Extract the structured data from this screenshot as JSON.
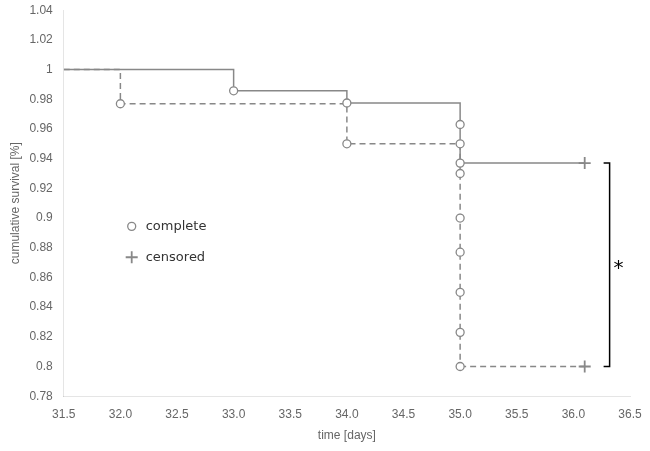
{
  "chart_data": {
    "type": "line",
    "xlabel": "time [days]",
    "ylabel": "cumulative survival [%]",
    "xlim": [
      31.5,
      36.5
    ],
    "ylim": [
      0.78,
      1.04
    ],
    "xticks": [
      31.5,
      {
        "value": 32.0,
        "label": "32.0"
      },
      32.5,
      {
        "value": 33.0,
        "label": "33.0"
      },
      33.5,
      {
        "value": 34.0,
        "label": "34.0"
      },
      34.5,
      {
        "value": 35.0,
        "label": "35.0"
      },
      35.5,
      {
        "value": 36.0,
        "label": "36.0"
      },
      36.5
    ],
    "yticks": [
      0.78,
      0.8,
      0.82,
      0.84,
      0.86,
      0.88,
      0.9,
      0.92,
      0.94,
      0.96,
      0.98,
      1,
      1.02,
      1.04
    ],
    "grid": false,
    "series": [
      {
        "type": "line",
        "line_style": "dashed",
        "color": "#888888",
        "x": [
          31.5,
          32.0,
          32.0,
          34.0,
          34.0,
          35.0
        ],
        "values": [
          1.0,
          1.0,
          0.977,
          0.977,
          0.95,
          0.95
        ]
      },
      {
        "type": "line",
        "line_style": "dashed",
        "color": "#888888",
        "x": [
          35.0,
          35.0
        ],
        "values": [
          0.95,
          0.8
        ]
      },
      {
        "type": "line",
        "line_style": "dashed",
        "color": "#888888",
        "x": [
          35.0,
          36.1
        ],
        "values": [
          0.8,
          0.8
        ]
      },
      {
        "type": "scatter",
        "marker": "circle",
        "color": "#888888",
        "x": [
          32.0,
          34.0,
          35.0,
          35.0,
          35.0,
          35.0,
          35.0,
          35.0,
          35.0
        ],
        "values": [
          0.977,
          0.95,
          0.95,
          0.93,
          0.9,
          0.877,
          0.85,
          0.823,
          0.8
        ]
      },
      {
        "type": "scatter",
        "marker": "plus",
        "color": "#888888",
        "x": [
          36.1
        ],
        "values": [
          0.8
        ]
      },
      {
        "type": "line",
        "line_style": "solid",
        "color": "#888888",
        "x": [
          31.5,
          33.0,
          33.0,
          34.0,
          34.0,
          35.0,
          35.0,
          36.1
        ],
        "values": [
          1.0,
          1.0,
          0.9857,
          0.9857,
          0.9775,
          0.9775,
          0.937,
          0.937
        ]
      },
      {
        "type": "scatter",
        "marker": "circle",
        "color": "#888888",
        "x": [
          33.0,
          34.0,
          35.0,
          35.0
        ],
        "values": [
          0.9857,
          0.9775,
          0.963,
          0.937
        ]
      },
      {
        "type": "scatter",
        "marker": "plus",
        "color": "#888888",
        "x": [
          36.1
        ],
        "values": [
          0.937
        ]
      }
    ],
    "annotations": [
      {
        "text": "complete",
        "marker": "circle"
      },
      {
        "text": "censored",
        "marker": "plus"
      },
      {
        "text": "*",
        "x": 36.32,
        "y": 0.8685,
        "bracket": [
          0.8,
          0.937
        ]
      }
    ]
  }
}
